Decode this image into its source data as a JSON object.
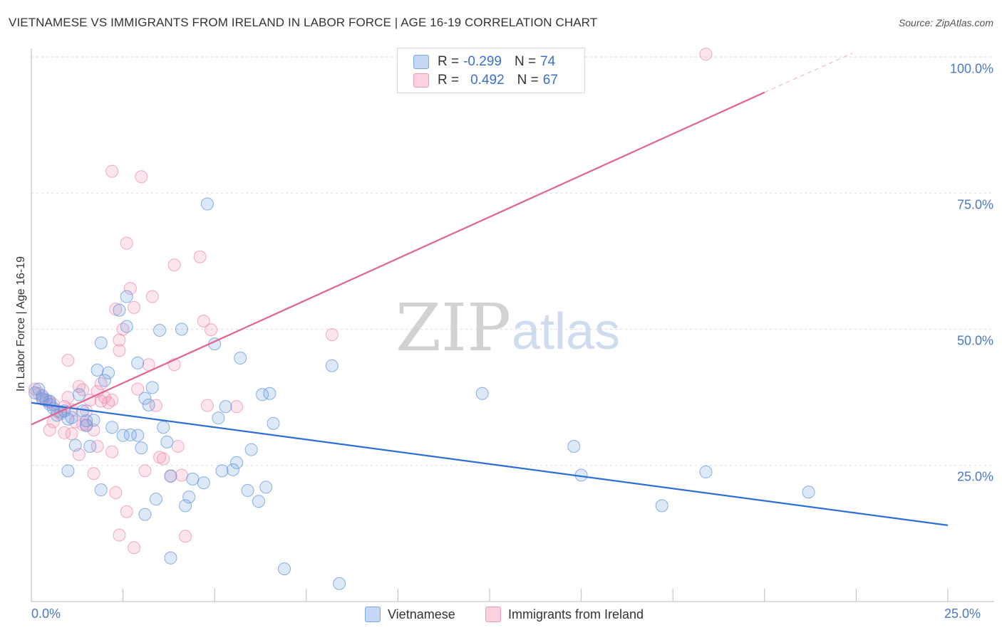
{
  "header": {
    "title": "VIETNAMESE VS IMMIGRANTS FROM IRELAND IN LABOR FORCE | AGE 16-19 CORRELATION CHART",
    "source": "Source: ZipAtlas.com"
  },
  "watermark": {
    "zip": "ZIP",
    "atlas": "atlas"
  },
  "legend": {
    "rows": [
      {
        "r_label": "R =",
        "r_value": "-0.299",
        "n_label": "N =",
        "n_value": "74",
        "color": "#a8c4ee"
      },
      {
        "r_label": "R =",
        "r_value": "0.492",
        "n_label": "N =",
        "n_value": "67",
        "color": "#f5b8cb"
      }
    ]
  },
  "bottom_legend": {
    "series_a": "Vietnamese",
    "series_b": "Immigrants from Ireland"
  },
  "chart_data": {
    "type": "scatter",
    "title": "VIETNAMESE VS IMMIGRANTS FROM IRELAND IN LABOR FORCE | AGE 16-19 CORRELATION CHART",
    "xlabel": "",
    "ylabel": "In Labor Force | Age 16-19",
    "xlim": [
      0,
      25
    ],
    "ylim": [
      0,
      100
    ],
    "x_tick_labels": [
      "0.0%",
      "25.0%"
    ],
    "y_tick_labels": [
      "25.0%",
      "50.0%",
      "75.0%",
      "100.0%"
    ],
    "y_ticks": [
      25,
      50,
      75,
      100
    ],
    "grid": true,
    "legend_position": "top-center",
    "colors": {
      "vietnamese": "#6b9be0",
      "ireland": "#ef8fb0",
      "vietnamese_line": "#2b6fd6",
      "ireland_line": "#e0648e"
    },
    "series": [
      {
        "name": "Vietnamese",
        "r": -0.299,
        "n": 74,
        "trend": {
          "x": [
            0,
            25
          ],
          "y": [
            36.5,
            14.0
          ]
        },
        "points": [
          [
            0.1,
            38.3
          ],
          [
            0.2,
            39.0
          ],
          [
            0.3,
            37.2
          ],
          [
            0.3,
            37.8
          ],
          [
            0.4,
            37.0
          ],
          [
            0.5,
            36.8
          ],
          [
            0.6,
            35.5
          ],
          [
            0.7,
            34.2
          ],
          [
            0.8,
            34.8
          ],
          [
            0.9,
            35.0
          ],
          [
            1.0,
            33.5
          ],
          [
            1.0,
            24.0
          ],
          [
            1.1,
            33.8
          ],
          [
            1.2,
            28.7
          ],
          [
            1.3,
            38.0
          ],
          [
            1.4,
            35.0
          ],
          [
            1.5,
            33.2
          ],
          [
            1.5,
            32.3
          ],
          [
            1.6,
            28.5
          ],
          [
            1.7,
            33.3
          ],
          [
            1.8,
            42.5
          ],
          [
            1.9,
            47.5
          ],
          [
            2.0,
            40.6
          ],
          [
            2.1,
            42.0
          ],
          [
            2.2,
            32.0
          ],
          [
            2.4,
            53.5
          ],
          [
            2.5,
            30.5
          ],
          [
            2.6,
            50.5
          ],
          [
            2.6,
            56.0
          ],
          [
            2.7,
            30.6
          ],
          [
            2.9,
            43.8
          ],
          [
            3.0,
            28.2
          ],
          [
            3.1,
            37.3
          ],
          [
            3.2,
            36.1
          ],
          [
            3.3,
            39.3
          ],
          [
            3.4,
            18.8
          ],
          [
            3.5,
            49.8
          ],
          [
            3.6,
            32.0
          ],
          [
            3.7,
            29.3
          ],
          [
            3.8,
            23.0
          ],
          [
            4.1,
            50.0
          ],
          [
            4.2,
            17.6
          ],
          [
            4.3,
            19.2
          ],
          [
            4.4,
            22.5
          ],
          [
            4.7,
            21.8
          ],
          [
            4.8,
            73.0
          ],
          [
            5.0,
            47.3
          ],
          [
            5.1,
            33.7
          ],
          [
            5.3,
            35.8
          ],
          [
            5.5,
            24.2
          ],
          [
            5.2,
            24.0
          ],
          [
            5.6,
            25.5
          ],
          [
            5.7,
            44.7
          ],
          [
            5.9,
            20.4
          ],
          [
            6.0,
            27.9
          ],
          [
            6.2,
            18.4
          ],
          [
            6.3,
            38.0
          ],
          [
            6.4,
            21.0
          ],
          [
            6.5,
            38.2
          ],
          [
            6.6,
            32.7
          ],
          [
            6.9,
            6.0
          ],
          [
            8.2,
            43.3
          ],
          [
            8.4,
            3.3
          ],
          [
            12.3,
            38.2
          ],
          [
            14.8,
            28.5
          ],
          [
            15.0,
            23.2
          ],
          [
            17.2,
            17.6
          ],
          [
            18.4,
            23.8
          ],
          [
            21.2,
            20.1
          ],
          [
            2.9,
            30.5
          ],
          [
            3.8,
            8.0
          ],
          [
            3.1,
            16.0
          ],
          [
            1.9,
            20.5
          ],
          [
            0.5,
            36.2
          ]
        ]
      },
      {
        "name": "Immigrants from Ireland",
        "r": 0.492,
        "n": 67,
        "trend": {
          "x": [
            0,
            20
          ],
          "y": [
            32.5,
            93.5
          ]
        },
        "trend_dashed": {
          "x": [
            20,
            22.4
          ],
          "y": [
            93.5,
            100.7
          ]
        },
        "points": [
          [
            0.1,
            39.0
          ],
          [
            0.2,
            38.2
          ],
          [
            0.3,
            37.5
          ],
          [
            0.4,
            37.0
          ],
          [
            0.5,
            36.6
          ],
          [
            0.6,
            36.2
          ],
          [
            0.7,
            35.0
          ],
          [
            0.8,
            34.5
          ],
          [
            0.9,
            35.8
          ],
          [
            1.0,
            37.5
          ],
          [
            1.1,
            35.2
          ],
          [
            1.2,
            33.0
          ],
          [
            1.3,
            39.5
          ],
          [
            1.4,
            38.9
          ],
          [
            1.5,
            32.5
          ],
          [
            1.6,
            37.0
          ],
          [
            1.7,
            31.5
          ],
          [
            1.8,
            38.6
          ],
          [
            1.9,
            36.8
          ],
          [
            2.0,
            37.5
          ],
          [
            2.1,
            36.5
          ],
          [
            2.2,
            37.0
          ],
          [
            2.2,
            27.5
          ],
          [
            2.3,
            53.7
          ],
          [
            2.4,
            46.1
          ],
          [
            2.4,
            48.0
          ],
          [
            2.5,
            50.0
          ],
          [
            2.6,
            65.8
          ],
          [
            2.7,
            57.5
          ],
          [
            2.8,
            54.0
          ],
          [
            2.9,
            39.0
          ],
          [
            3.0,
            78.0
          ],
          [
            3.2,
            43.5
          ],
          [
            3.3,
            56.0
          ],
          [
            3.4,
            36.0
          ],
          [
            3.5,
            26.5
          ],
          [
            3.6,
            26.2
          ],
          [
            3.8,
            23.1
          ],
          [
            3.9,
            43.5
          ],
          [
            3.9,
            61.8
          ],
          [
            4.0,
            28.5
          ],
          [
            4.1,
            23.2
          ],
          [
            4.2,
            12.0
          ],
          [
            4.6,
            63.3
          ],
          [
            4.7,
            51.5
          ],
          [
            4.8,
            36.0
          ],
          [
            4.9,
            49.9
          ],
          [
            5.6,
            35.8
          ],
          [
            2.2,
            79.0
          ],
          [
            1.1,
            30.8
          ],
          [
            1.3,
            27.0
          ],
          [
            1.4,
            32.5
          ],
          [
            1.5,
            35.0
          ],
          [
            1.7,
            23.5
          ],
          [
            1.8,
            28.5
          ],
          [
            2.3,
            20.0
          ],
          [
            2.4,
            12.2
          ],
          [
            2.6,
            16.5
          ],
          [
            2.8,
            9.9
          ],
          [
            3.1,
            24.0
          ],
          [
            1.0,
            44.3
          ],
          [
            0.6,
            33.0
          ],
          [
            0.5,
            31.5
          ],
          [
            0.9,
            31.0
          ],
          [
            8.2,
            49.0
          ],
          [
            1.9,
            40.0
          ],
          [
            18.4,
            100.5
          ]
        ]
      }
    ]
  }
}
